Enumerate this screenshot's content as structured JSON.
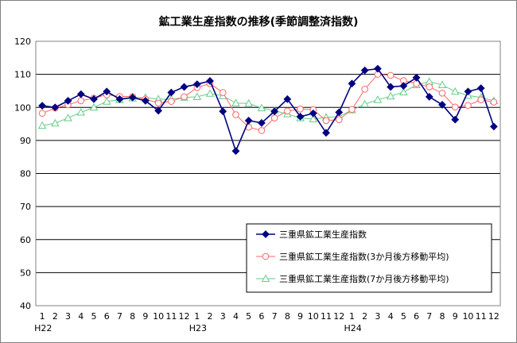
{
  "chart_data": {
    "type": "line",
    "title": "鉱工業生産指数の推移(季節調整済指数)",
    "xlabel": "",
    "ylabel": "",
    "ylim": [
      40,
      120
    ],
    "yticks": [
      40,
      50,
      60,
      70,
      80,
      90,
      100,
      110,
      120
    ],
    "grid": true,
    "legend_position": "bottom-right",
    "month_labels": [
      "1",
      "2",
      "3",
      "4",
      "5",
      "6",
      "7",
      "8",
      "9",
      "10",
      "11",
      "12",
      "1",
      "2",
      "3",
      "4",
      "5",
      "6",
      "7",
      "8",
      "9",
      "10",
      "11",
      "12",
      "1",
      "2",
      "3",
      "4",
      "5",
      "6",
      "7",
      "8",
      "9",
      "10",
      "11",
      "12"
    ],
    "year_labels": [
      {
        "label": "H22",
        "index": 0
      },
      {
        "label": "H23",
        "index": 12
      },
      {
        "label": "H24",
        "index": 24
      }
    ],
    "series": [
      {
        "name": "三重県鉱工業生産指数",
        "color": "#000080",
        "marker": "diamond",
        "values": [
          100.5,
          100.0,
          102.0,
          104.0,
          102.5,
          104.8,
          102.5,
          103.0,
          102.0,
          99.0,
          104.5,
          106.2,
          107.0,
          108.0,
          98.8,
          86.8,
          96.0,
          95.3,
          98.8,
          102.5,
          97.2,
          98.2,
          92.3,
          98.5,
          107.2,
          111.2,
          111.7,
          106.2,
          106.5,
          109.0,
          103.2,
          100.8,
          96.3,
          104.8,
          105.8,
          94.2
        ]
      },
      {
        "name": "三重県鉱工業生産指数(3か月後方移動平均)",
        "color": "#ff6666",
        "marker": "circle",
        "values": [
          98.2,
          99.8,
          100.8,
          102.0,
          102.8,
          103.8,
          103.3,
          103.3,
          102.5,
          101.3,
          101.8,
          103.2,
          106.0,
          107.2,
          104.5,
          97.8,
          94.0,
          93.0,
          96.8,
          98.9,
          99.5,
          99.3,
          96.0,
          96.3,
          99.4,
          105.5,
          110.0,
          109.7,
          108.1,
          107.2,
          106.2,
          104.3,
          100.1,
          100.6,
          102.3,
          101.6
        ]
      },
      {
        "name": "三重県鉱工業生産指数(7か月後方移動平均)",
        "color": "#66cc88",
        "marker": "triangle",
        "values": [
          94.5,
          95.2,
          96.8,
          98.5,
          100.0,
          101.8,
          102.3,
          102.8,
          103.0,
          102.5,
          102.5,
          103.0,
          103.2,
          104.2,
          103.5,
          101.3,
          101.2,
          99.8,
          99.0,
          98.0,
          96.8,
          96.5,
          97.0,
          97.2,
          99.2,
          101.0,
          102.3,
          103.4,
          104.6,
          106.8,
          107.8,
          106.8,
          104.8,
          103.6,
          103.0,
          102.0
        ]
      }
    ]
  }
}
